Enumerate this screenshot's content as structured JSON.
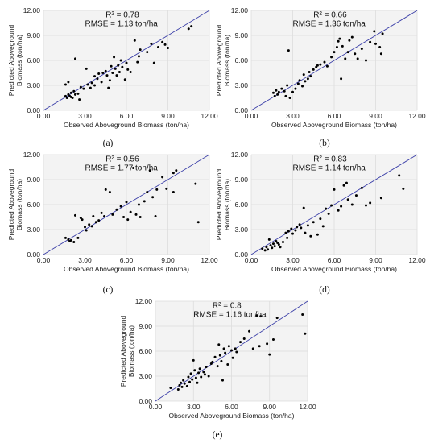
{
  "chart_data": [
    {
      "panel": "a",
      "type": "scatter",
      "caption": "(a)",
      "r2": "R² = 0.78",
      "rmse": "RMSE = 1.13 ton/ha",
      "xlabel": "Observed Aboveground Biomass (ton/ha)",
      "ylabel": [
        "Predicted Aboveground",
        "Biomass (ton/ha)"
      ],
      "xlim": [
        0,
        12
      ],
      "ylim": [
        0,
        12
      ],
      "ticks": [
        "0.00",
        "3.00",
        "6.00",
        "9.00",
        "12.00"
      ],
      "points": [
        [
          1.6,
          1.7
        ],
        [
          1.7,
          1.5
        ],
        [
          1.8,
          1.9
        ],
        [
          1.9,
          1.7
        ],
        [
          2.0,
          1.6
        ],
        [
          2.1,
          1.5
        ],
        [
          2.0,
          2.1
        ],
        [
          2.3,
          1.9
        ],
        [
          1.6,
          3.1
        ],
        [
          1.8,
          3.4
        ],
        [
          2.2,
          2.3
        ],
        [
          2.3,
          6.2
        ],
        [
          2.5,
          2.0
        ],
        [
          2.6,
          1.3
        ],
        [
          2.7,
          2.8
        ],
        [
          2.9,
          2.6
        ],
        [
          3.1,
          5.0
        ],
        [
          3.2,
          3.1
        ],
        [
          3.4,
          2.7
        ],
        [
          3.5,
          3.3
        ],
        [
          3.7,
          3.0
        ],
        [
          3.7,
          4.1
        ],
        [
          3.9,
          3.8
        ],
        [
          4.0,
          4.4
        ],
        [
          4.2,
          3.4
        ],
        [
          4.3,
          4.5
        ],
        [
          4.5,
          4.7
        ],
        [
          4.6,
          4.2
        ],
        [
          4.7,
          2.7
        ],
        [
          4.8,
          3.6
        ],
        [
          4.9,
          5.3
        ],
        [
          5.0,
          4.5
        ],
        [
          5.1,
          6.4
        ],
        [
          5.2,
          5.0
        ],
        [
          5.3,
          4.2
        ],
        [
          5.4,
          5.4
        ],
        [
          5.5,
          4.6
        ],
        [
          5.6,
          6.0
        ],
        [
          5.7,
          5.2
        ],
        [
          5.9,
          3.7
        ],
        [
          6.0,
          5.7
        ],
        [
          6.1,
          4.9
        ],
        [
          6.3,
          4.6
        ],
        [
          6.6,
          8.4
        ],
        [
          6.8,
          5.8
        ],
        [
          6.9,
          6.5
        ],
        [
          7.0,
          7.3
        ],
        [
          7.5,
          7.0
        ],
        [
          7.8,
          8.0
        ],
        [
          8.0,
          5.7
        ],
        [
          8.3,
          7.6
        ],
        [
          8.6,
          8.2
        ],
        [
          8.8,
          7.9
        ],
        [
          9.0,
          7.5
        ],
        [
          10.5,
          9.8
        ],
        [
          10.7,
          10.1
        ]
      ]
    },
    {
      "panel": "b",
      "type": "scatter",
      "caption": "(b)",
      "r2": "R² = 0.66",
      "rmse": "RMSE = 1.36 ton/ha",
      "xlabel": "Observed Aboveground Biomass (ton/ha)",
      "ylabel": [
        "Predicted Aboveground",
        "Biomass (ton/ha)"
      ],
      "xlim": [
        0,
        12
      ],
      "ylim": [
        0,
        12
      ],
      "ticks": [
        "0.00",
        "3.00",
        "6.00",
        "9.00",
        "12.00"
      ],
      "points": [
        [
          1.6,
          2.1
        ],
        [
          1.7,
          1.7
        ],
        [
          1.8,
          2.4
        ],
        [
          1.9,
          1.9
        ],
        [
          2.0,
          2.2
        ],
        [
          2.2,
          2.6
        ],
        [
          2.4,
          2.3
        ],
        [
          2.5,
          1.7
        ],
        [
          2.6,
          3.0
        ],
        [
          2.7,
          7.2
        ],
        [
          2.8,
          1.5
        ],
        [
          3.0,
          2.2
        ],
        [
          3.2,
          2.6
        ],
        [
          3.4,
          3.2
        ],
        [
          3.5,
          3.6
        ],
        [
          3.7,
          2.9
        ],
        [
          3.8,
          4.3
        ],
        [
          3.9,
          3.5
        ],
        [
          4.1,
          3.8
        ],
        [
          4.2,
          4.6
        ],
        [
          4.3,
          4.1
        ],
        [
          4.5,
          4.9
        ],
        [
          4.7,
          5.2
        ],
        [
          4.8,
          5.4
        ],
        [
          5.0,
          5.5
        ],
        [
          5.3,
          5.8
        ],
        [
          5.5,
          5.3
        ],
        [
          5.8,
          6.4
        ],
        [
          6.0,
          7.0
        ],
        [
          6.2,
          7.6
        ],
        [
          6.3,
          8.3
        ],
        [
          6.4,
          8.6
        ],
        [
          6.5,
          3.8
        ],
        [
          6.6,
          7.7
        ],
        [
          6.8,
          6.2
        ],
        [
          7.0,
          7.0
        ],
        [
          7.1,
          8.4
        ],
        [
          7.3,
          8.8
        ],
        [
          7.5,
          6.8
        ],
        [
          7.7,
          6.2
        ],
        [
          8.0,
          7.4
        ],
        [
          8.3,
          6.0
        ],
        [
          8.6,
          8.2
        ],
        [
          8.9,
          9.5
        ],
        [
          9.0,
          8.0
        ],
        [
          9.3,
          7.6
        ],
        [
          9.5,
          9.2
        ],
        [
          9.4,
          6.8
        ]
      ]
    },
    {
      "panel": "c",
      "type": "scatter",
      "caption": "(c)",
      "r2": "R² = 0.56",
      "rmse": "RMSE = 1.77 ton/ha",
      "xlabel": "Observed Aboveground Biomass (ton/ha)",
      "ylabel": [
        "Predicted Aboveground",
        "Biomass (ton/ha)"
      ],
      "xlim": [
        0,
        12
      ],
      "ylim": [
        0,
        12
      ],
      "ticks": [
        "0.00",
        "3.00",
        "6.00",
        "9.00",
        "12.00"
      ],
      "points": [
        [
          1.6,
          2.0
        ],
        [
          1.8,
          1.8
        ],
        [
          1.9,
          1.6
        ],
        [
          2.0,
          1.7
        ],
        [
          2.2,
          1.5
        ],
        [
          2.3,
          4.7
        ],
        [
          2.5,
          2.0
        ],
        [
          2.7,
          4.4
        ],
        [
          2.8,
          4.2
        ],
        [
          3.0,
          3.3
        ],
        [
          3.1,
          2.9
        ],
        [
          3.3,
          3.6
        ],
        [
          3.5,
          3.4
        ],
        [
          3.6,
          4.6
        ],
        [
          3.8,
          3.9
        ],
        [
          4.0,
          4.1
        ],
        [
          4.2,
          5.0
        ],
        [
          4.4,
          4.6
        ],
        [
          4.5,
          7.8
        ],
        [
          4.8,
          7.5
        ],
        [
          5.0,
          4.8
        ],
        [
          5.3,
          5.4
        ],
        [
          5.6,
          5.8
        ],
        [
          5.8,
          4.5
        ],
        [
          6.0,
          6.3
        ],
        [
          6.1,
          4.2
        ],
        [
          6.3,
          5.1
        ],
        [
          6.5,
          10.4
        ],
        [
          6.7,
          4.8
        ],
        [
          6.9,
          6.0
        ],
        [
          7.0,
          4.5
        ],
        [
          7.3,
          6.4
        ],
        [
          7.5,
          7.5
        ],
        [
          7.7,
          10.1
        ],
        [
          7.9,
          6.9
        ],
        [
          8.1,
          4.6
        ],
        [
          8.2,
          7.8
        ],
        [
          8.6,
          9.3
        ],
        [
          8.9,
          7.9
        ],
        [
          9.4,
          7.5
        ],
        [
          9.6,
          10.1
        ],
        [
          9.4,
          9.8
        ],
        [
          11.0,
          8.5
        ],
        [
          11.2,
          3.9
        ]
      ]
    },
    {
      "panel": "d",
      "type": "scatter",
      "caption": "(d)",
      "r2": "R² = 0.83",
      "rmse": "RMSE = 1.14 ton/ha",
      "xlabel": "Observed Aboveground Biomass (ton/ha)",
      "ylabel": [
        "Predicted Aboveground",
        "Biomass (ton/ha)"
      ],
      "xlim": [
        0,
        12
      ],
      "ylim": [
        0,
        12
      ],
      "ticks": [
        "0.00",
        "3.00",
        "6.00",
        "9.00",
        "12.00"
      ],
      "points": [
        [
          0.8,
          0.7
        ],
        [
          1.0,
          0.5
        ],
        [
          1.1,
          0.9
        ],
        [
          1.2,
          0.6
        ],
        [
          1.3,
          1.8
        ],
        [
          1.4,
          1.1
        ],
        [
          1.5,
          0.8
        ],
        [
          1.6,
          1.3
        ],
        [
          1.7,
          1.0
        ],
        [
          1.8,
          1.6
        ],
        [
          1.9,
          1.4
        ],
        [
          2.0,
          1.2
        ],
        [
          2.1,
          0.9
        ],
        [
          2.3,
          1.5
        ],
        [
          2.5,
          2.6
        ],
        [
          2.6,
          2.0
        ],
        [
          2.7,
          2.8
        ],
        [
          2.9,
          3.1
        ],
        [
          3.0,
          2.5
        ],
        [
          3.2,
          2.9
        ],
        [
          3.3,
          3.3
        ],
        [
          3.5,
          3.6
        ],
        [
          3.6,
          3.2
        ],
        [
          3.8,
          5.6
        ],
        [
          3.9,
          2.6
        ],
        [
          4.1,
          3.5
        ],
        [
          4.3,
          2.2
        ],
        [
          4.5,
          3.9
        ],
        [
          4.8,
          2.4
        ],
        [
          5.0,
          4.3
        ],
        [
          5.2,
          3.4
        ],
        [
          5.4,
          5.5
        ],
        [
          5.6,
          4.9
        ],
        [
          5.8,
          5.9
        ],
        [
          6.0,
          7.8
        ],
        [
          6.3,
          5.3
        ],
        [
          6.5,
          5.8
        ],
        [
          6.7,
          8.3
        ],
        [
          6.9,
          8.6
        ],
        [
          7.0,
          6.6
        ],
        [
          7.3,
          6.0
        ],
        [
          7.6,
          7.1
        ],
        [
          8.0,
          8.0
        ],
        [
          8.3,
          5.9
        ],
        [
          8.6,
          6.2
        ],
        [
          9.4,
          6.8
        ],
        [
          10.7,
          9.5
        ],
        [
          11.0,
          7.9
        ]
      ]
    },
    {
      "panel": "e",
      "type": "scatter",
      "caption": "(e)",
      "r2": "R² =  0.8",
      "rmse": "RMSE = 1.16 ton/ha",
      "xlabel": "Observed Aboveground Biomass (ton/ha)",
      "ylabel": [
        "Predicted Aboveground",
        "Biomass (ton/ha)"
      ],
      "xlim": [
        0,
        12
      ],
      "ylim": [
        0,
        12
      ],
      "ticks": [
        "0.00",
        "3.00",
        "6.00",
        "9.00",
        "12.00"
      ],
      "points": [
        [
          1.2,
          1.6
        ],
        [
          1.8,
          1.4
        ],
        [
          1.9,
          1.9
        ],
        [
          2.0,
          2.2
        ],
        [
          2.1,
          1.7
        ],
        [
          2.2,
          2.5
        ],
        [
          2.3,
          2.1
        ],
        [
          2.5,
          1.8
        ],
        [
          2.6,
          2.9
        ],
        [
          2.7,
          2.3
        ],
        [
          2.8,
          3.3
        ],
        [
          2.9,
          2.6
        ],
        [
          3.0,
          4.9
        ],
        [
          3.1,
          3.7
        ],
        [
          3.2,
          2.8
        ],
        [
          3.3,
          2.2
        ],
        [
          3.4,
          3.4
        ],
        [
          3.5,
          3.9
        ],
        [
          3.6,
          2.9
        ],
        [
          3.8,
          3.5
        ],
        [
          3.9,
          3.2
        ],
        [
          4.0,
          4.1
        ],
        [
          4.2,
          3.0
        ],
        [
          4.4,
          4.5
        ],
        [
          4.5,
          4.7
        ],
        [
          4.7,
          5.3
        ],
        [
          4.9,
          4.2
        ],
        [
          5.0,
          6.8
        ],
        [
          5.1,
          5.5
        ],
        [
          5.2,
          4.8
        ],
        [
          5.3,
          2.5
        ],
        [
          5.4,
          6.3
        ],
        [
          5.5,
          5.8
        ],
        [
          5.7,
          4.4
        ],
        [
          5.8,
          6.6
        ],
        [
          6.0,
          6.1
        ],
        [
          6.1,
          5.2
        ],
        [
          6.3,
          6.3
        ],
        [
          6.4,
          5.9
        ],
        [
          6.7,
          7.1
        ],
        [
          7.0,
          7.5
        ],
        [
          7.4,
          8.4
        ],
        [
          7.7,
          6.3
        ],
        [
          8.0,
          10.3
        ],
        [
          8.2,
          6.6
        ],
        [
          8.3,
          10.2
        ],
        [
          8.8,
          6.9
        ],
        [
          9.0,
          5.6
        ],
        [
          9.3,
          7.4
        ],
        [
          9.6,
          10.0
        ],
        [
          11.6,
          10.4
        ],
        [
          11.8,
          8.1
        ]
      ]
    }
  ]
}
